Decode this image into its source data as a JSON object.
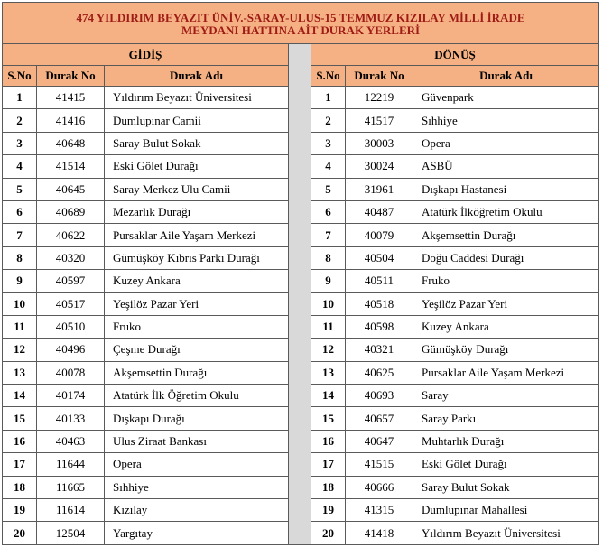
{
  "title_line1": "474 YILDIRIM BEYAZIT ÜNİV.-SARAY-ULUS-15 TEMMUZ KIZILAY MİLLİ İRADE",
  "title_line2": "MEYDANI HATTINA AİT  DURAK YERLERİ",
  "outbound_label": "GİDİŞ",
  "return_label": "DÖNÜŞ",
  "headers": {
    "sno": "S.No",
    "code": "Durak No",
    "name": "Durak Adı"
  },
  "colors": {
    "header_fill": "#f5b183",
    "title_text": "#9e1b16",
    "separator": "#d9d9d9",
    "border": "#5a5a5a"
  },
  "outbound": [
    {
      "no": "1",
      "code": "41415",
      "name": "Yıldırım Beyazıt Üniversitesi"
    },
    {
      "no": "2",
      "code": "41416",
      "name": "Dumlupınar Camii"
    },
    {
      "no": "3",
      "code": "40648",
      "name": "Saray Bulut Sokak"
    },
    {
      "no": "4",
      "code": "41514",
      "name": "Eski Gölet Durağı"
    },
    {
      "no": "5",
      "code": "40645",
      "name": "Saray Merkez Ulu Camii"
    },
    {
      "no": "6",
      "code": "40689",
      "name": "Mezarlık Durağı"
    },
    {
      "no": "7",
      "code": "40622",
      "name": "Pursaklar Aile Yaşam Merkezi"
    },
    {
      "no": "8",
      "code": "40320",
      "name": "Gümüşköy Kıbrıs Parkı Durağı"
    },
    {
      "no": "9",
      "code": "40597",
      "name": "Kuzey Ankara"
    },
    {
      "no": "10",
      "code": "40517",
      "name": "Yeşilöz Pazar Yeri"
    },
    {
      "no": "11",
      "code": "40510",
      "name": "Fruko"
    },
    {
      "no": "12",
      "code": "40496",
      "name": "Çeşme Durağı"
    },
    {
      "no": "13",
      "code": "40078",
      "name": "Akşemsettin Durağı"
    },
    {
      "no": "14",
      "code": "40174",
      "name": "Atatürk İlk Öğretim Okulu"
    },
    {
      "no": "15",
      "code": "40133",
      "name": "Dışkapı Durağı"
    },
    {
      "no": "16",
      "code": "40463",
      "name": "Ulus Ziraat Bankası"
    },
    {
      "no": "17",
      "code": "11644",
      "name": "Opera"
    },
    {
      "no": "18",
      "code": "11665",
      "name": "Sıhhiye"
    },
    {
      "no": "19",
      "code": "11614",
      "name": "Kızılay"
    },
    {
      "no": "20",
      "code": "12504",
      "name": "Yargıtay"
    }
  ],
  "return": [
    {
      "no": "1",
      "code": "12219",
      "name": "Güvenpark"
    },
    {
      "no": "2",
      "code": "41517",
      "name": "Sıhhiye"
    },
    {
      "no": "3",
      "code": "30003",
      "name": "Opera"
    },
    {
      "no": "4",
      "code": "30024",
      "name": "ASBÜ"
    },
    {
      "no": "5",
      "code": "31961",
      "name": "Dışkapı Hastanesi"
    },
    {
      "no": "6",
      "code": "40487",
      "name": "Atatürk İlköğretim Okulu"
    },
    {
      "no": "7",
      "code": "40079",
      "name": "Akşemsettin Durağı"
    },
    {
      "no": "8",
      "code": "40504",
      "name": "Doğu Caddesi Durağı"
    },
    {
      "no": "9",
      "code": "40511",
      "name": "Fruko"
    },
    {
      "no": "10",
      "code": "40518",
      "name": "Yeşilöz Pazar Yeri"
    },
    {
      "no": "11",
      "code": "40598",
      "name": "Kuzey Ankara"
    },
    {
      "no": "12",
      "code": "40321",
      "name": "Gümüşköy Durağı"
    },
    {
      "no": "13",
      "code": "40625",
      "name": "Pursaklar Aile Yaşam Merkezi"
    },
    {
      "no": "14",
      "code": "40693",
      "name": "Saray"
    },
    {
      "no": "15",
      "code": "40657",
      "name": "Saray Parkı"
    },
    {
      "no": "16",
      "code": "40647",
      "name": "Muhtarlık Durağı"
    },
    {
      "no": "17",
      "code": "41515",
      "name": "Eski Gölet Durağı"
    },
    {
      "no": "18",
      "code": "40666",
      "name": "Saray Bulut Sokak"
    },
    {
      "no": "19",
      "code": "41315",
      "name": "Dumlupınar Mahallesi"
    },
    {
      "no": "20",
      "code": "41418",
      "name": "Yıldırım Beyazıt Üniversitesi"
    }
  ]
}
